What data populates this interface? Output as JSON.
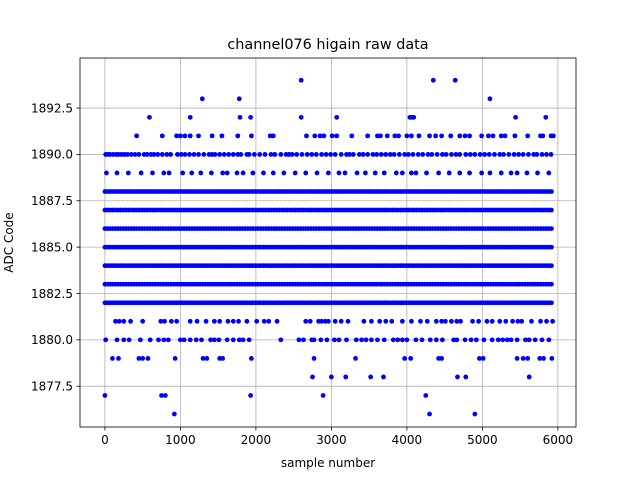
{
  "chart_data": {
    "type": "scatter",
    "title": "channel076 higain raw data",
    "xlabel": "sample number",
    "ylabel": "ADC Code",
    "xlim": [
      -330,
      6240
    ],
    "ylim": [
      1875.3,
      1895.2
    ],
    "xticks": [
      0,
      1000,
      2000,
      3000,
      4000,
      5000,
      6000
    ],
    "xtick_labels": [
      "0",
      "1000",
      "2000",
      "3000",
      "4000",
      "5000",
      "6000"
    ],
    "yticks": [
      1877.5,
      1880.0,
      1882.5,
      1885.0,
      1887.5,
      1890.0,
      1892.5
    ],
    "ytick_labels": [
      "1877.5",
      "1880.0",
      "1882.5",
      "1885.0",
      "1887.5",
      "1890.0",
      "1892.5"
    ],
    "grid": true,
    "marker_color": "#0000ff",
    "x_range": [
      0,
      5940
    ],
    "dense_levels": [
      1882,
      1883,
      1884,
      1885,
      1886,
      1887,
      1888
    ],
    "sparse_levels": [
      {
        "level": 1890,
        "x": [
          10,
          40,
          70,
          110,
          150,
          180,
          220,
          260,
          300,
          350,
          400,
          450,
          520,
          560,
          610,
          650,
          700,
          760,
          820,
          870,
          960,
          1010,
          1060,
          1120,
          1180,
          1240,
          1310,
          1380,
          1420,
          1460,
          1520,
          1580,
          1640,
          1700,
          1760,
          1800,
          1880,
          1910,
          1980,
          2050,
          2120,
          2200,
          2250,
          2330,
          2400,
          2440,
          2480,
          2540,
          2610,
          2680,
          2740,
          2800,
          2870,
          2930,
          2990,
          3050,
          3130,
          3200,
          3240,
          3290,
          3370,
          3420,
          3480,
          3550,
          3600,
          3660,
          3720,
          3780,
          3830,
          3900,
          3970,
          4020,
          4080,
          4150,
          4210,
          4280,
          4330,
          4400,
          4470,
          4520,
          4590,
          4650,
          4700,
          4780,
          4840,
          4900,
          4970,
          5030,
          5090,
          5160,
          5230,
          5280,
          5350,
          5420,
          5480,
          5540,
          5610,
          5680,
          5720,
          5790,
          5850,
          5910
        ]
      },
      {
        "level": 1889,
        "x": [
          20,
          160,
          310,
          480,
          630,
          780,
          850,
          1030,
          1150,
          1270,
          1410,
          1560,
          1620,
          1750,
          1830,
          1960,
          2100,
          2230,
          2370,
          2520,
          2660,
          2810,
          2960,
          3100,
          3180,
          3340,
          3450,
          3580,
          3700,
          3860,
          3940,
          4060,
          4120,
          4260,
          4420,
          4560,
          4700,
          4830,
          4990,
          5100,
          5250,
          5380,
          5460,
          5590,
          5730,
          5880
        ]
      },
      {
        "level": 1891,
        "x": [
          420,
          760,
          950,
          1000,
          1060,
          1130,
          1240,
          1420,
          1550,
          1760,
          1940,
          2190,
          2230,
          2670,
          2780,
          2850,
          2900,
          3010,
          3070,
          3270,
          3480,
          3610,
          3650,
          3740,
          3840,
          3890,
          4000,
          4060,
          4160,
          4300,
          4380,
          4460,
          4580,
          4700,
          4770,
          4830,
          4990,
          5080,
          5140,
          5250,
          5300,
          5430,
          5600,
          5770,
          5800,
          5910,
          5940
        ]
      },
      {
        "level": 1892,
        "x": [
          590,
          1130,
          1790,
          1930,
          2600,
          3070,
          4040,
          4070,
          4090,
          5440,
          5840
        ]
      },
      {
        "level": 1893,
        "x": [
          1290,
          1780,
          5100
        ]
      },
      {
        "level": 1894,
        "x": [
          2600,
          4350,
          4640
        ]
      },
      {
        "level": 1881,
        "x": [
          140,
          190,
          250,
          340,
          500,
          740,
          790,
          880,
          950,
          1130,
          1220,
          1340,
          1450,
          1520,
          1630,
          1700,
          1770,
          1880,
          2010,
          2110,
          2170,
          2280,
          2660,
          2720,
          2830,
          2870,
          2920,
          2960,
          3050,
          3130,
          3220,
          3430,
          3530,
          3640,
          3720,
          3800,
          3940,
          4060,
          4180,
          4270,
          4390,
          4460,
          4510,
          4590,
          4660,
          4710,
          4870,
          4950,
          5060,
          5130,
          5230,
          5310,
          5400,
          5470,
          5520,
          5650,
          5770,
          5850,
          5930
        ]
      },
      {
        "level": 1880,
        "x": [
          10,
          160,
          250,
          320,
          470,
          600,
          710,
          780,
          840,
          1000,
          1050,
          1130,
          1210,
          1280,
          1400,
          1450,
          1510,
          1620,
          1700,
          1780,
          1830,
          1910,
          2330,
          2570,
          2630,
          2740,
          2770,
          2860,
          2940,
          3040,
          3100,
          3200,
          3330,
          3400,
          3460,
          3530,
          3610,
          3700,
          3820,
          3880,
          3940,
          4000,
          4120,
          4200,
          4310,
          4390,
          4470,
          4620,
          4660,
          4770,
          4850,
          4920,
          5020,
          5130,
          5210,
          5270,
          5330,
          5380,
          5460,
          5570,
          5620,
          5700,
          5790,
          5880
        ]
      },
      {
        "level": 1879,
        "x": [
          100,
          180,
          450,
          500,
          570,
          930,
          1300,
          1350,
          1520,
          1560,
          1940,
          2770,
          3320,
          3970,
          4050,
          4420,
          4460,
          4960,
          5010,
          5460,
          5540,
          5600,
          5760,
          5810,
          5920
        ]
      },
      {
        "level": 1878,
        "x": [
          2750,
          3000,
          3190,
          3520,
          3690,
          4670,
          4780,
          5620
        ]
      },
      {
        "level": 1877,
        "x": [
          0,
          750,
          800,
          1930,
          2890,
          4250
        ]
      },
      {
        "level": 1876,
        "x": [
          920,
          4300,
          4900
        ]
      }
    ]
  }
}
